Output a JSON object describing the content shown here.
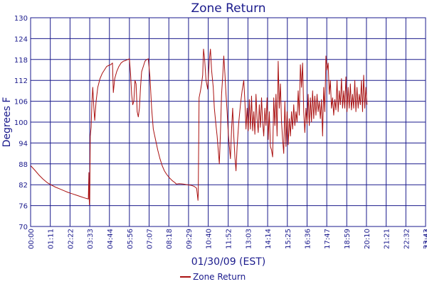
{
  "chart_data": {
    "type": "line",
    "title": "Zone Return",
    "xlabel": "01/30/09 (EST)",
    "ylabel": "Degrees F",
    "ylim": [
      70,
      130
    ],
    "yticks": [
      70,
      76,
      82,
      88,
      94,
      100,
      106,
      112,
      118,
      124,
      130
    ],
    "xlim": [
      0,
      1423
    ],
    "xticks": [
      {
        "label": "00:00",
        "minute": 0
      },
      {
        "label": "01:11",
        "minute": 71
      },
      {
        "label": "02:22",
        "minute": 142
      },
      {
        "label": "03:33",
        "minute": 213
      },
      {
        "label": "04:44",
        "minute": 284
      },
      {
        "label": "05:56",
        "minute": 356
      },
      {
        "label": "07:07",
        "minute": 427
      },
      {
        "label": "08:18",
        "minute": 498
      },
      {
        "label": "09:29",
        "minute": 569
      },
      {
        "label": "10:40",
        "minute": 640
      },
      {
        "label": "11:52",
        "minute": 712
      },
      {
        "label": "13:03",
        "minute": 783
      },
      {
        "label": "14:14",
        "minute": 854
      },
      {
        "label": "15:25",
        "minute": 925
      },
      {
        "label": "16:36",
        "minute": 996
      },
      {
        "label": "17:47",
        "minute": 1067
      },
      {
        "label": "18:59",
        "minute": 1139
      },
      {
        "label": "20:10",
        "minute": 1210
      },
      {
        "label": "21:21",
        "minute": 1281
      },
      {
        "label": "22:32",
        "minute": 1352
      },
      {
        "label": "23:43",
        "minute": 1423
      },
      {
        "label": "23:44",
        "minute": 1424
      }
    ],
    "grid": true,
    "legend_position": "bottom-center",
    "colors": {
      "series": "#aa1111",
      "grid": "#1a1a8c",
      "text": "#1a1a8c",
      "background": "#ffffff"
    },
    "series": [
      {
        "name": "Zone Return",
        "color": "#aa1111",
        "points": [
          [
            0,
            87.5
          ],
          [
            15,
            86.2
          ],
          [
            30,
            84.8
          ],
          [
            45,
            83.6
          ],
          [
            60,
            82.6
          ],
          [
            75,
            81.9
          ],
          [
            90,
            81.3
          ],
          [
            105,
            80.8
          ],
          [
            120,
            80.3
          ],
          [
            135,
            79.8
          ],
          [
            150,
            79.4
          ],
          [
            165,
            79.0
          ],
          [
            180,
            78.6
          ],
          [
            195,
            78.2
          ],
          [
            208,
            77.9
          ],
          [
            210,
            85.5
          ],
          [
            211,
            78.0
          ],
          [
            212,
            76.2
          ],
          [
            213,
            77.5
          ],
          [
            215,
            96.0
          ],
          [
            218,
            98.5
          ],
          [
            221,
            106.0
          ],
          [
            224,
            110.0
          ],
          [
            228,
            104.0
          ],
          [
            231,
            100.5
          ],
          [
            236,
            106.0
          ],
          [
            242,
            110.0
          ],
          [
            250,
            112.5
          ],
          [
            258,
            114.0
          ],
          [
            266,
            115.0
          ],
          [
            274,
            116.0
          ],
          [
            282,
            116.3
          ],
          [
            290,
            116.6
          ],
          [
            295,
            117.0
          ],
          [
            298,
            108.5
          ],
          [
            303,
            112.5
          ],
          [
            310,
            114.5
          ],
          [
            318,
            116.0
          ],
          [
            326,
            117.0
          ],
          [
            334,
            117.5
          ],
          [
            342,
            117.7
          ],
          [
            350,
            118.0
          ],
          [
            356,
            118.2
          ],
          [
            360,
            114.0
          ],
          [
            364,
            108.0
          ],
          [
            368,
            105.0
          ],
          [
            372,
            106.0
          ],
          [
            376,
            112.0
          ],
          [
            380,
            111.0
          ],
          [
            384,
            103.0
          ],
          [
            388,
            101.5
          ],
          [
            392,
            104.0
          ],
          [
            396,
            110.0
          ],
          [
            400,
            114.5
          ],
          [
            406,
            116.0
          ],
          [
            412,
            117.5
          ],
          [
            418,
            118.0
          ],
          [
            424,
            118.2
          ],
          [
            430,
            113.0
          ],
          [
            436,
            104.0
          ],
          [
            442,
            98.0
          ],
          [
            450,
            95.0
          ],
          [
            458,
            92.0
          ],
          [
            466,
            89.5
          ],
          [
            474,
            87.5
          ],
          [
            482,
            86.0
          ],
          [
            490,
            85.0
          ],
          [
            500,
            84.0
          ],
          [
            510,
            83.2
          ],
          [
            520,
            82.6
          ],
          [
            525,
            82.2
          ],
          [
            535,
            82.3
          ],
          [
            550,
            82.2
          ],
          [
            565,
            82.0
          ],
          [
            580,
            81.8
          ],
          [
            590,
            81.5
          ],
          [
            598,
            81.0
          ],
          [
            601,
            79.0
          ],
          [
            603,
            77.5
          ],
          [
            604,
            79.5
          ],
          [
            607,
            107.0
          ],
          [
            612,
            109.0
          ],
          [
            616,
            111.0
          ],
          [
            620,
            113.5
          ],
          [
            623,
            121.0
          ],
          [
            627,
            118.0
          ],
          [
            632,
            112.0
          ],
          [
            638,
            109.5
          ],
          [
            644,
            118.0
          ],
          [
            648,
            121.0
          ],
          [
            652,
            115.0
          ],
          [
            658,
            110.0
          ],
          [
            662,
            104.0
          ],
          [
            668,
            99.0
          ],
          [
            672,
            96.0
          ],
          [
            676,
            92.0
          ],
          [
            680,
            88.0
          ],
          [
            684,
            97.0
          ],
          [
            688,
            108.0
          ],
          [
            692,
            113.0
          ],
          [
            696,
            119.0
          ],
          [
            700,
            114.0
          ],
          [
            704,
            108.0
          ],
          [
            708,
            103.0
          ],
          [
            712,
            97.0
          ],
          [
            716,
            93.0
          ],
          [
            720,
            89.5
          ],
          [
            724,
            98.0
          ],
          [
            728,
            104.0
          ],
          [
            732,
            96.0
          ],
          [
            736,
            90.0
          ],
          [
            740,
            86.0
          ],
          [
            744,
            93.0
          ],
          [
            750,
            100.0
          ],
          [
            756,
            105.0
          ],
          [
            762,
            109.0
          ],
          [
            768,
            112.0
          ],
          [
            772,
            106.0
          ],
          [
            776,
            98.0
          ],
          [
            780,
            104.0
          ],
          [
            784,
            97.5
          ],
          [
            788,
            106.5
          ],
          [
            792,
            98.0
          ],
          [
            796,
            107.5
          ],
          [
            800,
            97.5
          ],
          [
            804,
            103.0
          ],
          [
            808,
            96.5
          ],
          [
            812,
            108.0
          ],
          [
            816,
            101.0
          ],
          [
            820,
            97.0
          ],
          [
            824,
            105.0
          ],
          [
            828,
            98.5
          ],
          [
            832,
            107.0
          ],
          [
            836,
            100.0
          ],
          [
            840,
            96.0
          ],
          [
            844,
            104.0
          ],
          [
            848,
            99.0
          ],
          [
            852,
            107.0
          ],
          [
            856,
            95.0
          ],
          [
            860,
            103.0
          ],
          [
            864,
            93.0
          ],
          [
            868,
            92.0
          ],
          [
            872,
            90.0
          ],
          [
            876,
            107.0
          ],
          [
            880,
            99.0
          ],
          [
            884,
            108.0
          ],
          [
            888,
            96.0
          ],
          [
            892,
            117.5
          ],
          [
            896,
            104.0
          ],
          [
            900,
            111.0
          ],
          [
            904,
            100.0
          ],
          [
            908,
            95.0
          ],
          [
            912,
            91.0
          ],
          [
            916,
            106.0
          ],
          [
            920,
            93.0
          ],
          [
            924,
            103.0
          ],
          [
            928,
            93.5
          ],
          [
            932,
            101.0
          ],
          [
            936,
            96.0
          ],
          [
            940,
            103.0
          ],
          [
            944,
            98.0
          ],
          [
            948,
            105.0
          ],
          [
            952,
            99.0
          ],
          [
            956,
            103.0
          ],
          [
            960,
            100.0
          ],
          [
            964,
            109.0
          ],
          [
            968,
            102.0
          ],
          [
            972,
            116.5
          ],
          [
            976,
            110.0
          ],
          [
            980,
            117.0
          ],
          [
            984,
            103.0
          ],
          [
            988,
            97.0
          ],
          [
            992,
            104.0
          ],
          [
            996,
            99.5
          ],
          [
            1000,
            108.0
          ],
          [
            1004,
            99.0
          ],
          [
            1008,
            107.0
          ],
          [
            1012,
            100.0
          ],
          [
            1016,
            109.0
          ],
          [
            1020,
            101.0
          ],
          [
            1024,
            107.5
          ],
          [
            1028,
            102.0
          ],
          [
            1032,
            108.0
          ],
          [
            1036,
            103.0
          ],
          [
            1040,
            106.0
          ],
          [
            1044,
            101.0
          ],
          [
            1048,
            106.5
          ],
          [
            1052,
            96.0
          ],
          [
            1056,
            110.0
          ],
          [
            1060,
            103.0
          ],
          [
            1064,
            119.0
          ],
          [
            1068,
            115.0
          ],
          [
            1072,
            117.0
          ],
          [
            1076,
            108.0
          ],
          [
            1080,
            112.0
          ],
          [
            1084,
            104.0
          ],
          [
            1088,
            107.0
          ],
          [
            1092,
            102.0
          ],
          [
            1096,
            106.5
          ],
          [
            1100,
            103.5
          ],
          [
            1104,
            112.0
          ],
          [
            1108,
            103.0
          ],
          [
            1112,
            109.0
          ],
          [
            1116,
            105.0
          ],
          [
            1120,
            112.5
          ],
          [
            1124,
            104.0
          ],
          [
            1128,
            109.0
          ],
          [
            1132,
            104.0
          ],
          [
            1136,
            113.0
          ],
          [
            1140,
            103.0
          ],
          [
            1144,
            110.0
          ],
          [
            1148,
            104.0
          ],
          [
            1152,
            111.0
          ],
          [
            1156,
            103.5
          ],
          [
            1160,
            108.0
          ],
          [
            1164,
            104.0
          ],
          [
            1168,
            112.0
          ],
          [
            1172,
            103.0
          ],
          [
            1176,
            110.0
          ],
          [
            1180,
            104.0
          ],
          [
            1184,
            108.0
          ],
          [
            1188,
            105.0
          ],
          [
            1192,
            112.0
          ],
          [
            1196,
            103.0
          ],
          [
            1200,
            113.5
          ],
          [
            1204,
            104.0
          ],
          [
            1208,
            110.0
          ],
          [
            1212,
            105.0
          ]
        ]
      }
    ]
  }
}
